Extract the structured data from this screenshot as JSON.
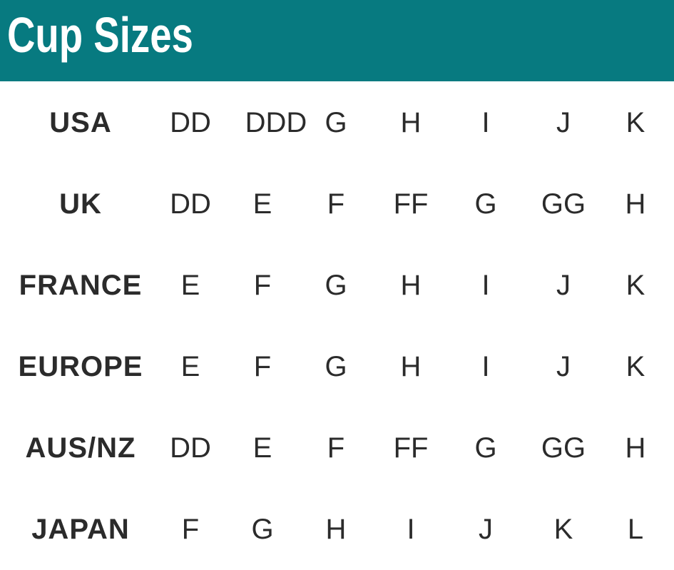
{
  "title": "Cup Sizes",
  "header_color": "#077a80",
  "rows": [
    {
      "label": "USA",
      "sizes": [
        "DD",
        "DDD",
        "G",
        "H",
        "I",
        "J",
        "K"
      ]
    },
    {
      "label": "UK",
      "sizes": [
        "DD",
        "E",
        "F",
        "FF",
        "G",
        "GG",
        "H"
      ]
    },
    {
      "label": "FRANCE",
      "sizes": [
        "E",
        "F",
        "G",
        "H",
        "I",
        "J",
        "K"
      ]
    },
    {
      "label": "EUROPE",
      "sizes": [
        "E",
        "F",
        "G",
        "H",
        "I",
        "J",
        "K"
      ]
    },
    {
      "label": "AUS/NZ",
      "sizes": [
        "DD",
        "E",
        "F",
        "FF",
        "G",
        "GG",
        "H"
      ]
    },
    {
      "label": "JAPAN",
      "sizes": [
        "F",
        "G",
        "H",
        "I",
        "J",
        "K",
        "L"
      ]
    }
  ]
}
